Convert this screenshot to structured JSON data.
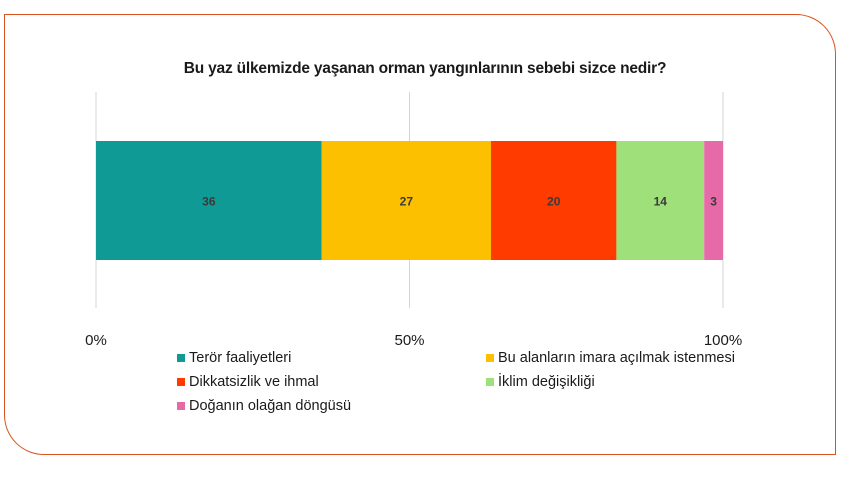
{
  "chart_data": {
    "type": "bar",
    "orientation": "horizontal",
    "stacked": "percent",
    "title": "Bu yaz ülkemizde yaşanan orman yangınlarının sebebi sizce nedir?",
    "xlim": [
      0,
      100
    ],
    "x_ticks": [
      {
        "value": 0,
        "label": "0%"
      },
      {
        "value": 50,
        "label": "50%"
      },
      {
        "value": 100,
        "label": "100%"
      }
    ],
    "legend_position": "bottom",
    "series": [
      {
        "name": "Terör faaliyetleri",
        "value": 36,
        "label": "36",
        "color": "#0f9a96"
      },
      {
        "name": "Bu alanların imara açılmak istenmesi",
        "value": 27,
        "label": "27",
        "color": "#fdc000"
      },
      {
        "name": "Dikkatsizlik ve ihmal",
        "value": 20,
        "label": "20",
        "color": "#ff3b00"
      },
      {
        "name": "İklim değişikliği",
        "value": 14,
        "label": "14",
        "color": "#9fe07a"
      },
      {
        "name": "Doğanın olağan döngüsü",
        "value": 3,
        "label": "3",
        "color": "#e76aa8"
      }
    ]
  }
}
